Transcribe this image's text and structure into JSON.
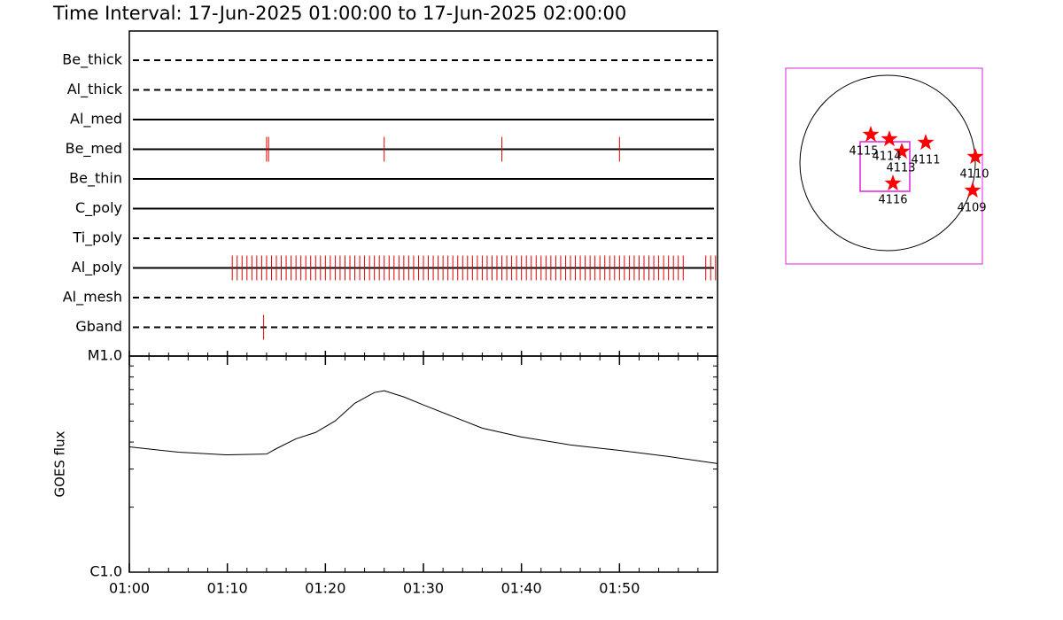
{
  "title": "Time Interval: 17-Jun-2025 01:00:00 to 17-Jun-2025 02:00:00",
  "chart_data": [
    {
      "type": "event",
      "xlim": [
        0,
        60
      ],
      "color": "#e00000",
      "rows": [
        {
          "name": "Be_thick",
          "style": "dashed",
          "events": []
        },
        {
          "name": "Al_thick",
          "style": "dashed",
          "events": []
        },
        {
          "name": "Al_med",
          "style": "solid",
          "events": []
        },
        {
          "name": "Be_med",
          "style": "solid",
          "events": [
            14.0,
            14.2,
            26.0,
            38.0,
            50.0
          ]
        },
        {
          "name": "Be_thin",
          "style": "solid",
          "events": []
        },
        {
          "name": "C_poly",
          "style": "solid",
          "events": []
        },
        {
          "name": "Ti_poly",
          "style": "dashed",
          "events": []
        },
        {
          "name": "Al_poly",
          "style": "solid",
          "events": [
            10.5,
            11,
            11.5,
            12,
            12.5,
            13,
            13.5,
            14,
            14.5,
            15,
            15.5,
            16,
            16.5,
            17,
            17.5,
            18,
            18.5,
            19,
            19.5,
            20,
            20.5,
            21,
            21.5,
            22,
            22.5,
            23,
            23.5,
            24,
            24.5,
            25,
            25.5,
            26,
            26.5,
            27,
            27.5,
            28,
            28.5,
            29,
            29.5,
            30,
            30.5,
            31,
            31.5,
            32,
            32.5,
            33,
            33.5,
            34,
            34.5,
            35,
            35.5,
            36,
            36.5,
            37,
            37.5,
            38,
            38.5,
            39,
            39.5,
            40,
            40.5,
            41,
            41.5,
            42,
            42.5,
            43,
            43.5,
            44,
            44.5,
            45,
            45.5,
            46,
            46.5,
            47,
            47.5,
            48,
            48.5,
            49,
            49.5,
            50,
            50.5,
            51,
            51.5,
            52,
            52.5,
            53,
            53.5,
            54,
            54.5,
            55,
            55.5,
            56,
            56.5,
            58.8,
            59.3,
            59.8
          ]
        },
        {
          "name": "Al_mesh",
          "style": "dashed",
          "events": []
        },
        {
          "name": "Gband",
          "style": "dashed",
          "events": [
            13.7
          ]
        }
      ]
    },
    {
      "type": "line",
      "ylabel": "GOES flux",
      "color": "#000000",
      "ylog": true,
      "x": [
        0,
        5,
        10,
        14,
        15,
        17,
        19,
        21,
        23,
        25,
        26,
        28,
        30,
        33,
        36,
        40,
        45,
        50,
        55,
        60
      ],
      "values": [
        3.8e-06,
        3.59e-06,
        3.49e-06,
        3.52e-06,
        3.73e-06,
        4.14e-06,
        4.43e-06,
        5.01e-06,
        6.05e-06,
        6.78e-06,
        6.91e-06,
        6.47e-06,
        5.94e-06,
        5.25e-06,
        4.64e-06,
        4.22e-06,
        3.88e-06,
        3.66e-06,
        3.43e-06,
        3.18e-06
      ],
      "xlim": [
        0,
        60
      ],
      "xticks": [
        {
          "value": 0,
          "label": "01:00"
        },
        {
          "value": 10,
          "label": "01:10"
        },
        {
          "value": 20,
          "label": "01:20"
        },
        {
          "value": 30,
          "label": "01:30"
        },
        {
          "value": 40,
          "label": "01:40"
        },
        {
          "value": 50,
          "label": "01:50"
        }
      ],
      "xminorticks": [
        2,
        4,
        6,
        8,
        12,
        14,
        16,
        18,
        22,
        24,
        26,
        28,
        32,
        34,
        36,
        38,
        42,
        44,
        46,
        48,
        52,
        54,
        56,
        58
      ],
      "ylim": [
        1e-06,
        1e-05
      ],
      "yticks": [
        {
          "value": 1e-06,
          "label": "C1.0"
        },
        {
          "value": 1e-05,
          "label": "M1.0"
        }
      ],
      "yminorticks": [
        2e-06,
        3e-06,
        4e-06,
        5e-06,
        6e-06,
        7e-06,
        8e-06,
        9e-06
      ]
    }
  ],
  "map": {
    "regions": [
      "4115",
      "4114",
      "4113",
      "4111",
      "4110",
      "4109",
      "4116"
    ]
  }
}
